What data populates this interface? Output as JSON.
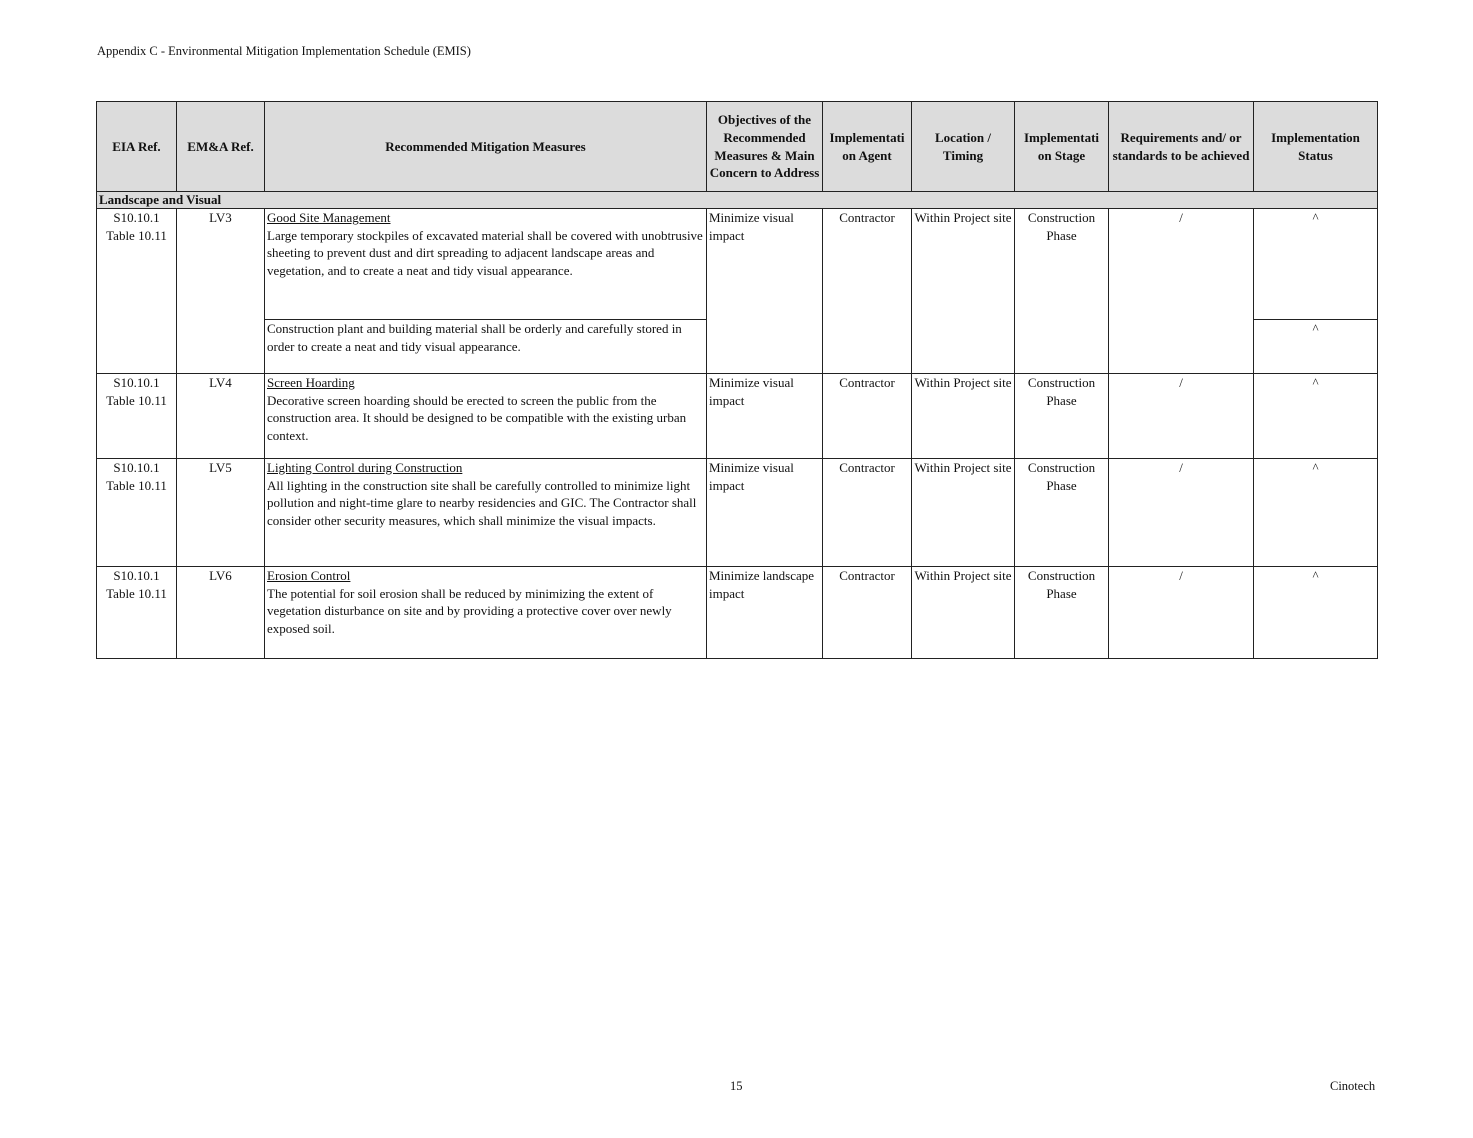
{
  "header": {
    "title": "Appendix C - Environmental Mitigation Implementation Schedule (EMIS)"
  },
  "table": {
    "columns": [
      "EIA Ref.",
      "EM&A Ref.",
      "Recommended Mitigation Measures",
      "Objectives of the Recommended Measures & Main Concern to Address",
      "Implementati on Agent",
      "Location / Timing",
      "Implementati on Stage",
      "Requirements and/ or standards to be achieved",
      "Implementation Status"
    ],
    "section": "Landscape and Visual",
    "rows": [
      {
        "eia": "S10.10.1",
        "eia2": "Table 10.11",
        "ema": "LV3",
        "title": "Good Site Management",
        "text": "Large temporary stockpiles of excavated material shall be covered with unobtrusive sheeting to prevent dust and dirt spreading to adjacent landscape areas and vegetation, and to create a neat and tidy visual appearance.",
        "text2": "Construction plant and building material shall be orderly and carefully stored in order to create a neat and tidy visual appearance.",
        "objective": "Minimize visual impact",
        "agent": "Contractor",
        "location": "Within Project site",
        "stage": "Construction Phase",
        "requirements": "/",
        "status": "^",
        "status2": "^"
      },
      {
        "eia": "S10.10.1",
        "eia2": "Table 10.11",
        "ema": "LV4",
        "title": "Screen Hoarding",
        "text": "Decorative screen hoarding should be erected to screen the public from the construction area.  It should be designed to be compatible with the existing urban context.",
        "objective": "Minimize visual impact",
        "agent": "Contractor",
        "location": "Within Project site",
        "stage": "Construction Phase",
        "requirements": "/",
        "status": "^"
      },
      {
        "eia": "S10.10.1",
        "eia2": "Table 10.11",
        "ema": "LV5",
        "title": "Lighting Control during Construction",
        "text": "All lighting in the construction site shall be carefully controlled to minimize light pollution and night-time glare to nearby residencies and GIC.  The Contractor shall consider other security measures, which shall minimize the visual impacts.",
        "objective": "Minimize visual impact",
        "agent": "Contractor",
        "location": "Within Project site",
        "stage": "Construction Phase",
        "requirements": "/",
        "status": "^"
      },
      {
        "eia": "S10.10.1",
        "eia2": "Table 10.11",
        "ema": "LV6",
        "title": "Erosion Control",
        "text": "The potential for soil erosion shall be reduced by minimizing the extent of vegetation disturbance on site and by providing a protective cover over newly exposed soil.",
        "objective": "Minimize landscape impact",
        "agent": "Contractor",
        "location": "Within Project site",
        "stage": "Construction Phase",
        "requirements": "/",
        "status": "^"
      }
    ]
  },
  "footer": {
    "page": "15",
    "company": "Cinotech"
  }
}
